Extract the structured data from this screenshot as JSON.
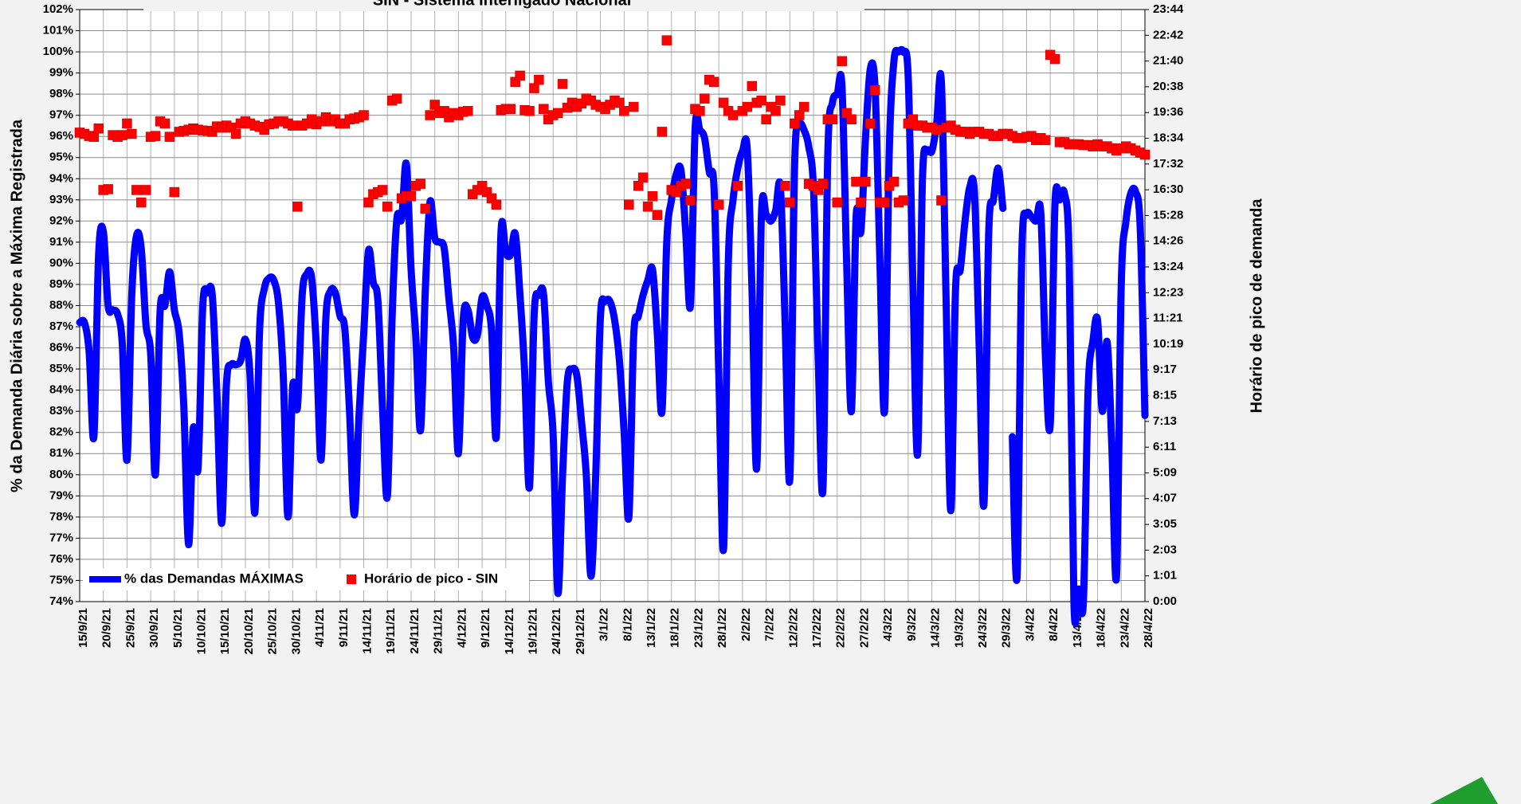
{
  "chart_data": {
    "type": "line",
    "title": "SIN - Sistema Interligado Nacional",
    "ylabel": "% da Demanda Diária sobre a Máxima Registrada",
    "y2label": "Horário de pico de demanda",
    "legend": "bottom-left",
    "grid": true,
    "ylim": [
      74,
      102
    ],
    "yticks": [
      {
        "value": 74,
        "label": "74%"
      },
      {
        "value": 75,
        "label": "75%"
      },
      {
        "value": 76,
        "label": "76%"
      },
      {
        "value": 77,
        "label": "77%"
      },
      {
        "value": 78,
        "label": "78%"
      },
      {
        "value": 79,
        "label": "79%"
      },
      {
        "value": 80,
        "label": "80%"
      },
      {
        "value": 81,
        "label": "81%"
      },
      {
        "value": 82,
        "label": "82%"
      },
      {
        "value": 83,
        "label": "83%"
      },
      {
        "value": 84,
        "label": "84%"
      },
      {
        "value": 85,
        "label": "85%"
      },
      {
        "value": 86,
        "label": "86%"
      },
      {
        "value": 87,
        "label": "87%"
      },
      {
        "value": 88,
        "label": "88%"
      },
      {
        "value": 89,
        "label": "89%"
      },
      {
        "value": 90,
        "label": "90%"
      },
      {
        "value": 91,
        "label": "91%"
      },
      {
        "value": 92,
        "label": "92%"
      },
      {
        "value": 93,
        "label": "93%"
      },
      {
        "value": 94,
        "label": "94%"
      },
      {
        "value": 95,
        "label": "95%"
      },
      {
        "value": 96,
        "label": "96%"
      },
      {
        "value": 97,
        "label": "97%"
      },
      {
        "value": 98,
        "label": "98%"
      },
      {
        "value": 99,
        "label": "99%"
      },
      {
        "value": 100,
        "label": "100%"
      },
      {
        "value": 101,
        "label": "101%"
      },
      {
        "value": 102,
        "label": "102%"
      }
    ],
    "y2lim": [
      0,
      1424
    ],
    "y2ticks": [
      {
        "value": 0,
        "label": "0:00"
      },
      {
        "value": 61.9,
        "label": "1:01"
      },
      {
        "value": 123.8,
        "label": "2:03"
      },
      {
        "value": 185.7,
        "label": "3:05"
      },
      {
        "value": 247.7,
        "label": "4:07"
      },
      {
        "value": 309.6,
        "label": "5:09"
      },
      {
        "value": 371.5,
        "label": "6:11"
      },
      {
        "value": 433.4,
        "label": "7:13"
      },
      {
        "value": 495.3,
        "label": "8:15"
      },
      {
        "value": 557.2,
        "label": "9:17"
      },
      {
        "value": 619.1,
        "label": "10:19"
      },
      {
        "value": 681,
        "label": "11:21"
      },
      {
        "value": 743,
        "label": "12:23"
      },
      {
        "value": 804.9,
        "label": "13:24"
      },
      {
        "value": 866.8,
        "label": "14:26"
      },
      {
        "value": 928.7,
        "label": "15:28"
      },
      {
        "value": 990.6,
        "label": "16:30"
      },
      {
        "value": 1052.5,
        "label": "17:32"
      },
      {
        "value": 1114.4,
        "label": "18:34"
      },
      {
        "value": 1176.3,
        "label": "19:36"
      },
      {
        "value": 1238.3,
        "label": "20:38"
      },
      {
        "value": 1300.2,
        "label": "21:40"
      },
      {
        "value": 1362.1,
        "label": "22:42"
      },
      {
        "value": 1424,
        "label": "23:44"
      }
    ],
    "categories": [
      "15/9/21",
      null,
      null,
      null,
      null,
      "20/9/21",
      null,
      null,
      null,
      null,
      "25/9/21",
      null,
      null,
      null,
      null,
      "30/9/21",
      null,
      null,
      null,
      null,
      "5/10/21",
      null,
      null,
      null,
      null,
      "10/10/21",
      null,
      null,
      null,
      null,
      "15/10/21",
      null,
      null,
      null,
      null,
      "20/10/21",
      null,
      null,
      null,
      null,
      "25/10/21",
      null,
      null,
      null,
      null,
      "30/10/21",
      null,
      null,
      null,
      null,
      "4/11/21",
      null,
      null,
      null,
      null,
      "9/11/21",
      null,
      null,
      null,
      null,
      "14/11/21",
      null,
      null,
      null,
      null,
      "19/11/21",
      null,
      null,
      null,
      null,
      "24/11/21",
      null,
      null,
      null,
      null,
      "29/11/21",
      null,
      null,
      null,
      null,
      "4/12/21",
      null,
      null,
      null,
      null,
      "9/12/21",
      null,
      null,
      null,
      null,
      "14/12/21",
      null,
      null,
      null,
      null,
      "19/12/21",
      null,
      null,
      null,
      null,
      "24/12/21",
      null,
      null,
      null,
      null,
      "29/12/21",
      null,
      null,
      null,
      null,
      "3/1/22",
      null,
      null,
      null,
      null,
      "8/1/22",
      null,
      null,
      null,
      null,
      "13/1/22",
      null,
      null,
      null,
      null,
      "18/1/22",
      null,
      null,
      null,
      null,
      "23/1/22",
      null,
      null,
      null,
      null,
      "28/1/22",
      null,
      null,
      null,
      null,
      "2/2/22",
      null,
      null,
      null,
      null,
      "7/2/22",
      null,
      null,
      null,
      null,
      "12/2/22",
      null,
      null,
      null,
      null,
      "17/2/22",
      null,
      null,
      null,
      null,
      "22/2/22",
      null,
      null,
      null,
      null,
      "27/2/22",
      null,
      null,
      null,
      null,
      "4/3/22",
      null,
      null,
      null,
      null,
      "9/3/22",
      null,
      null,
      null,
      null,
      "14/3/22",
      null,
      null,
      null,
      null,
      "19/3/22",
      null,
      null,
      null,
      null,
      "24/3/22",
      null,
      null,
      null,
      null,
      "29/3/22",
      null,
      null,
      null,
      null,
      "3/4/22",
      null,
      null,
      null,
      null,
      "8/4/22",
      null,
      null,
      null,
      null,
      "13/4/22",
      null,
      null,
      null,
      null,
      "18/4/22",
      null,
      null,
      null,
      null,
      "23/4/22",
      null,
      null,
      null,
      null,
      "28/4/22"
    ],
    "series": [
      {
        "name": "% das Demandas MÁXIMAS",
        "color": "#0000ff",
        "values": [
          87.2,
          87.2,
          85.8,
          81.8,
          90.4,
          91.5,
          88.0,
          87.8,
          87.6,
          86.2,
          80.7,
          88.5,
          91.3,
          90.7,
          87.1,
          85.7,
          80.0,
          87.8,
          88.0,
          89.6,
          87.8,
          86.7,
          83.2,
          76.7,
          82.2,
          80.3,
          88.0,
          88.6,
          88.5,
          83.7,
          77.7,
          84.3,
          85.2,
          85.2,
          85.4,
          86.4,
          84.6,
          78.2,
          86.8,
          88.8,
          89.3,
          89.2,
          88.1,
          84.7,
          78.0,
          84.2,
          83.2,
          88.5,
          89.5,
          89.3,
          86.0,
          80.7,
          87.4,
          88.7,
          88.6,
          87.5,
          86.9,
          83.0,
          78.1,
          82.8,
          86.7,
          90.6,
          89.1,
          88.2,
          83.0,
          79.0,
          87.5,
          92.1,
          92.1,
          94.7,
          89.7,
          86.5,
          82.1,
          88.7,
          92.9,
          91.2,
          91.0,
          90.7,
          88.3,
          86.0,
          81.0,
          87.3,
          87.8,
          86.5,
          86.6,
          88.4,
          88.0,
          86.8,
          81.8,
          91.5,
          90.5,
          90.4,
          91.4,
          88.5,
          84.8,
          79.4,
          87.6,
          88.5,
          88.5,
          84.4,
          81.9,
          74.4,
          80.0,
          84.4,
          85.0,
          84.7,
          82.5,
          80.0,
          75.2,
          80.0,
          87.5,
          88.2,
          88.2,
          87.3,
          85.4,
          82.0,
          78.0,
          86.5,
          87.5,
          88.5,
          89.2,
          89.7,
          86.7,
          83.0,
          91.0,
          93.0,
          94.2,
          94.4,
          91.5,
          88.0,
          96.4,
          96.3,
          95.9,
          94.3,
          93.5,
          84.7,
          76.5,
          90.0,
          93.0,
          94.5,
          95.3,
          95.4,
          88.8,
          80.3,
          92.3,
          92.3,
          92.0,
          92.5,
          93.6,
          87.2,
          79.8,
          94.6,
          96.5,
          96.3,
          95.5,
          93.5,
          85.4,
          79.4,
          95.0,
          97.6,
          98.0,
          98.4,
          90.0,
          83.0,
          92.2,
          91.5,
          96.0,
          99.2,
          98.3,
          90.3,
          83.0,
          95.3,
          99.6,
          100.0,
          100.0,
          98.8,
          89.0,
          81.0,
          93.9,
          95.3,
          95.3,
          96.6,
          98.6,
          88.3,
          78.3,
          88.8,
          89.7,
          92.0,
          93.6,
          93.3,
          86.0,
          78.6,
          91.4,
          93.0,
          94.5,
          92.6,
          null,
          81.8,
          75.2,
          90.5,
          92.3,
          92.2,
          92.0,
          92.4,
          85.5,
          82.4,
          92.8,
          93.0,
          93.3,
          90.2,
          74.0,
          74.6,
          74.0,
          84.0,
          86.3,
          87.3,
          83.0,
          86.3,
          81.4,
          75.2,
          89.0,
          92.0,
          93.3,
          93.4,
          91.7,
          82.8
        ]
      },
      {
        "name": "Horário de pico - SIN",
        "color": "#ff0000",
        "type": "scatter",
        "axis": "y2",
        "values": [
          1128,
          1125,
          1120,
          1118,
          1138,
          990,
          992,
          1122,
          1118,
          1122,
          1150,
          1125,
          990,
          960,
          990,
          1118,
          1120,
          1155,
          1150,
          1118,
          985,
          1130,
          1132,
          1135,
          1138,
          1135,
          1133,
          1132,
          1130,
          1143,
          1140,
          1145,
          1140,
          1125,
          1150,
          1155,
          1150,
          1145,
          1142,
          1135,
          1148,
          1150,
          1155,
          1155,
          1150,
          1145,
          950,
          1145,
          1150,
          1160,
          1148,
          1155,
          1165,
          1155,
          1160,
          1150,
          1150,
          1160,
          1162,
          1165,
          1170,
          960,
          980,
          985,
          990,
          950,
          1205,
          1210,
          970,
          975,
          975,
          1000,
          1005,
          945,
          1170,
          1195,
          1175,
          1180,
          1165,
          1175,
          1170,
          1178,
          1180,
          980,
          990,
          1000,
          985,
          970,
          955,
          1182,
          1185,
          1185,
          1250,
          1265,
          1182,
          1180,
          1235,
          1255,
          1185,
          1160,
          1170,
          1175,
          1245,
          1188,
          1200,
          1190,
          1198,
          1210,
          1205,
          1195,
          1190,
          1185,
          1195,
          1205,
          1200,
          1180,
          955,
          1190,
          1000,
          1020,
          950,
          975,
          930,
          1130,
          1350,
          990,
          985,
          1000,
          1005,
          965,
          1185,
          1180,
          1210,
          1255,
          1250,
          955,
          1200,
          1180,
          1170,
          1000,
          1180,
          1190,
          1240,
          1200,
          1205,
          1160,
          1190,
          1180,
          1205,
          1000,
          960,
          1150,
          1170,
          1190,
          1005,
          1000,
          990,
          1005,
          1160,
          1160,
          960,
          1300,
          1175,
          1160,
          1010,
          960,
          1010,
          1150,
          1230,
          960,
          960,
          1000,
          1010,
          960,
          965,
          1150,
          1160,
          1145,
          1145,
          1140,
          1140,
          1135,
          965,
          1140,
          1145,
          1135,
          1130,
          1130,
          1125,
          1130,
          1130,
          1125,
          1125,
          1120,
          1120,
          1125,
          1125,
          1120,
          1115,
          1115,
          1118,
          1120,
          1110,
          1115,
          1110,
          1315,
          1305,
          1105,
          1105,
          1100,
          1100,
          1100,
          1098,
          1098,
          1095,
          1100,
          1095,
          1095,
          1090,
          1085,
          1090,
          1095,
          1090,
          1085,
          1080,
          1075
        ]
      }
    ]
  }
}
